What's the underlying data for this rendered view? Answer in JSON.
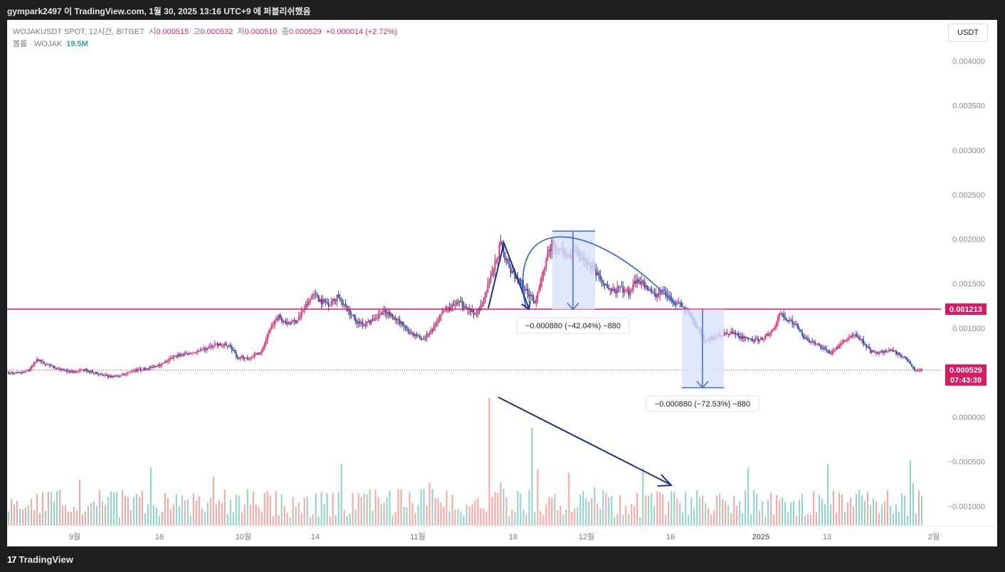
{
  "topbar": {
    "text": "gympark2497 이 TradingView.com, 1월 30, 2025 13:16 UTC+9 에 퍼블리쉬했음"
  },
  "footer": {
    "brand": "TradingView",
    "logo_glyph": "17"
  },
  "legend": {
    "symbol": "WOJAKUSDT SPOT, 12시간, BITGET",
    "open_label": "시",
    "open": "0.000515",
    "high_label": "고",
    "high": "0.000532",
    "low_label": "저",
    "low": "0.000510",
    "close_label": "종",
    "close": "0.000529",
    "change": "+0.000014 (+2.72%)",
    "volume_label": "볼륨 · WOJAK",
    "volume": "19.5M"
  },
  "unit_button": "USDT",
  "colors": {
    "up": "#e91e63",
    "down": "#1e3fa8",
    "vol_up": "#f4a6a0",
    "vol_down": "#8fd3c8",
    "drawing": "#3a6fd8",
    "arrow_dark": "#1a2f8a",
    "level": "#d81b60",
    "box_fill": "#d7e2fb"
  },
  "chart_data": {
    "type": "candlestick",
    "ylim": [
      -0.0012,
      0.0043
    ],
    "y_ticks": [
      "0.004000",
      "0.003500",
      "0.003000",
      "0.002500",
      "0.002000",
      "0.001500",
      "0.001000",
      "0.000000",
      "−0.000500",
      "−0.001000"
    ],
    "y_tick_values": [
      0.004,
      0.0035,
      0.003,
      0.0025,
      0.002,
      0.0015,
      0.001,
      0.0,
      -0.0005,
      -0.001
    ],
    "x_labels": [
      {
        "label": "9월",
        "bold": false
      },
      {
        "label": "16",
        "bold": false
      },
      {
        "label": "10월",
        "bold": false
      },
      {
        "label": "14",
        "bold": false
      },
      {
        "label": "11월",
        "bold": false
      },
      {
        "label": "18",
        "bold": false
      },
      {
        "label": "12월",
        "bold": false
      },
      {
        "label": "16",
        "bold": false
      },
      {
        "label": "2025",
        "bold": true
      },
      {
        "label": "13",
        "bold": false
      },
      {
        "label": "2월",
        "bold": false
      }
    ],
    "horizontal_level": {
      "value": 0.001213,
      "label": "0.001213"
    },
    "last_price": {
      "value": 0.000529,
      "label": "0.000529",
      "countdown": "07:43:39"
    },
    "measurements": [
      {
        "text": "−0.000880 (−42.04%) −880",
        "from": 0.00209,
        "to": 0.00121
      },
      {
        "text": "−0.000880 (−72.53%) −880",
        "from": 0.00121,
        "to": 0.00033
      }
    ],
    "price_path": [
      [
        0,
        0.0005
      ],
      [
        8,
        0.00049
      ],
      [
        14,
        0.00052
      ],
      [
        20,
        0.00064
      ],
      [
        26,
        0.0006
      ],
      [
        34,
        0.00054
      ],
      [
        44,
        0.00051
      ],
      [
        54,
        0.00053
      ],
      [
        64,
        0.00048
      ],
      [
        72,
        0.00045
      ],
      [
        80,
        0.00048
      ],
      [
        88,
        0.00052
      ],
      [
        98,
        0.00055
      ],
      [
        108,
        0.0006
      ],
      [
        118,
        0.00069
      ],
      [
        128,
        0.00072
      ],
      [
        136,
        0.00075
      ],
      [
        146,
        0.00082
      ],
      [
        156,
        0.0008
      ],
      [
        160,
        0.00068
      ],
      [
        168,
        0.00066
      ],
      [
        178,
        0.00074
      ],
      [
        184,
        0.001
      ],
      [
        190,
        0.00114
      ],
      [
        196,
        0.00104
      ],
      [
        202,
        0.00108
      ],
      [
        208,
        0.00122
      ],
      [
        214,
        0.00138
      ],
      [
        220,
        0.0013
      ],
      [
        226,
        0.00128
      ],
      [
        232,
        0.00136
      ],
      [
        238,
        0.00122
      ],
      [
        244,
        0.00108
      ],
      [
        250,
        0.00104
      ],
      [
        256,
        0.0011
      ],
      [
        262,
        0.00118
      ],
      [
        268,
        0.00116
      ],
      [
        274,
        0.00108
      ],
      [
        280,
        0.00098
      ],
      [
        286,
        0.00092
      ],
      [
        292,
        0.00088
      ],
      [
        298,
        0.00098
      ],
      [
        304,
        0.00118
      ],
      [
        310,
        0.00122
      ],
      [
        316,
        0.00128
      ],
      [
        322,
        0.00124
      ],
      [
        328,
        0.00114
      ],
      [
        334,
        0.00132
      ],
      [
        340,
        0.0016
      ],
      [
        346,
        0.00196
      ],
      [
        352,
        0.00166
      ],
      [
        358,
        0.00156
      ],
      [
        364,
        0.00142
      ],
      [
        370,
        0.0013
      ],
      [
        376,
        0.00166
      ],
      [
        382,
        0.00196
      ],
      [
        388,
        0.00188
      ],
      [
        394,
        0.00178
      ],
      [
        400,
        0.00186
      ],
      [
        406,
        0.00176
      ],
      [
        412,
        0.00164
      ],
      [
        418,
        0.0015
      ],
      [
        424,
        0.0014
      ],
      [
        430,
        0.00144
      ],
      [
        436,
        0.0014
      ],
      [
        442,
        0.00156
      ],
      [
        448,
        0.00148
      ],
      [
        454,
        0.00136
      ],
      [
        460,
        0.00142
      ],
      [
        466,
        0.00134
      ],
      [
        472,
        0.00126
      ],
      [
        478,
        0.00118
      ],
      [
        484,
        0.001
      ],
      [
        490,
        0.00086
      ],
      [
        496,
        0.0009
      ],
      [
        502,
        0.00092
      ],
      [
        508,
        0.00096
      ],
      [
        514,
        0.0009
      ],
      [
        520,
        0.00088
      ],
      [
        526,
        0.00086
      ],
      [
        532,
        0.0009
      ],
      [
        538,
        0.00098
      ],
      [
        542,
        0.00118
      ],
      [
        548,
        0.0011
      ],
      [
        554,
        0.00102
      ],
      [
        560,
        0.00088
      ],
      [
        566,
        0.00084
      ],
      [
        572,
        0.00078
      ],
      [
        578,
        0.00072
      ],
      [
        584,
        0.0008
      ],
      [
        590,
        0.00088
      ],
      [
        596,
        0.00092
      ],
      [
        600,
        0.00086
      ],
      [
        606,
        0.00074
      ],
      [
        612,
        0.00072
      ],
      [
        618,
        0.00076
      ],
      [
        624,
        0.00072
      ],
      [
        630,
        0.00068
      ],
      [
        634,
        0.0006
      ],
      [
        638,
        0.00052
      ],
      [
        642,
        0.00053
      ]
    ],
    "volume_note": "volume bars shown below price; values not labeled"
  }
}
